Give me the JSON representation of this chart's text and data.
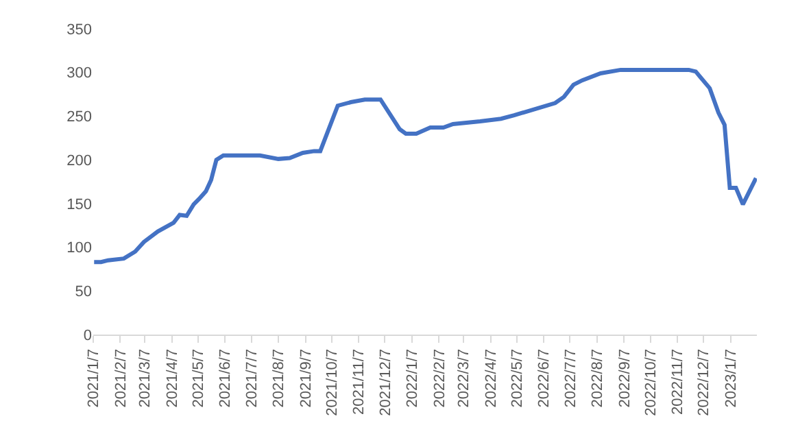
{
  "chart_data": {
    "type": "line",
    "x": [
      "2021-01-08",
      "2021-01-16",
      "2021-01-24",
      "2021-02-11",
      "2021-02-24",
      "2021-03-06",
      "2021-03-22",
      "2021-04-09",
      "2021-04-16",
      "2021-04-24",
      "2021-05-02",
      "2021-05-08",
      "2021-05-16",
      "2021-05-22",
      "2021-05-28",
      "2021-06-05",
      "2021-07-17",
      "2021-08-07",
      "2021-08-20",
      "2021-09-04",
      "2021-09-17",
      "2021-09-24",
      "2021-10-14",
      "2021-10-29",
      "2021-11-14",
      "2021-12-02",
      "2021-12-24",
      "2021-12-31",
      "2022-01-12",
      "2022-01-28",
      "2022-02-12",
      "2022-02-23",
      "2022-03-26",
      "2022-04-19",
      "2022-05-04",
      "2022-06-20",
      "2022-06-30",
      "2022-07-11",
      "2022-07-21",
      "2022-08-11",
      "2022-09-03",
      "2022-11-20",
      "2022-11-28",
      "2022-12-14",
      "2022-12-24",
      "2022-12-31",
      "2023-01-06",
      "2023-01-13",
      "2023-01-21",
      "2023-02-05"
    ],
    "values": [
      83,
      83,
      85,
      87,
      95,
      106,
      118,
      128,
      137,
      136,
      149,
      155,
      164,
      177,
      200,
      205,
      205,
      201,
      202,
      208,
      210,
      210,
      262,
      266,
      269,
      269,
      235,
      230,
      230,
      237,
      237,
      241,
      244,
      247,
      251,
      265,
      272,
      286,
      291,
      299,
      303,
      303,
      301,
      282,
      254,
      240,
      168,
      168,
      149,
      179
    ],
    "color": "#4472c4",
    "marker": "none",
    "line_style": "solid",
    "grid": false,
    "ylim": [
      0,
      350
    ],
    "yticks": [
      0,
      50,
      100,
      150,
      200,
      250,
      300,
      350
    ],
    "xlim": [
      "2021-01-07",
      "2023-02-06"
    ],
    "xticks": [
      {
        "value": "2021-01-07",
        "label": "2021/1/7"
      },
      {
        "value": "2021-02-07",
        "label": "2021/2/7"
      },
      {
        "value": "2021-03-07",
        "label": "2021/3/7"
      },
      {
        "value": "2021-04-07",
        "label": "2021/4/7"
      },
      {
        "value": "2021-05-07",
        "label": "2021/5/7"
      },
      {
        "value": "2021-06-07",
        "label": "2021/6/7"
      },
      {
        "value": "2021-07-07",
        "label": "2021/7/7"
      },
      {
        "value": "2021-08-07",
        "label": "2021/8/7"
      },
      {
        "value": "2021-09-07",
        "label": "2021/9/7"
      },
      {
        "value": "2021-10-07",
        "label": "2021/10/7"
      },
      {
        "value": "2021-11-07",
        "label": "2021/11/7"
      },
      {
        "value": "2021-12-07",
        "label": "2021/12/7"
      },
      {
        "value": "2022-01-07",
        "label": "2022/1/7"
      },
      {
        "value": "2022-02-07",
        "label": "2022/2/7"
      },
      {
        "value": "2022-03-07",
        "label": "2022/3/7"
      },
      {
        "value": "2022-04-07",
        "label": "2022/4/7"
      },
      {
        "value": "2022-05-07",
        "label": "2022/5/7"
      },
      {
        "value": "2022-06-07",
        "label": "2022/6/7"
      },
      {
        "value": "2022-07-07",
        "label": "2022/7/7"
      },
      {
        "value": "2022-08-07",
        "label": "2022/8/7"
      },
      {
        "value": "2022-09-07",
        "label": "2022/9/7"
      },
      {
        "value": "2022-10-07",
        "label": "2022/10/7"
      },
      {
        "value": "2022-11-07",
        "label": "2022/11/7"
      },
      {
        "value": "2022-12-07",
        "label": "2022/12/7"
      },
      {
        "value": "2023-01-07",
        "label": "2023/1/7"
      }
    ]
  }
}
